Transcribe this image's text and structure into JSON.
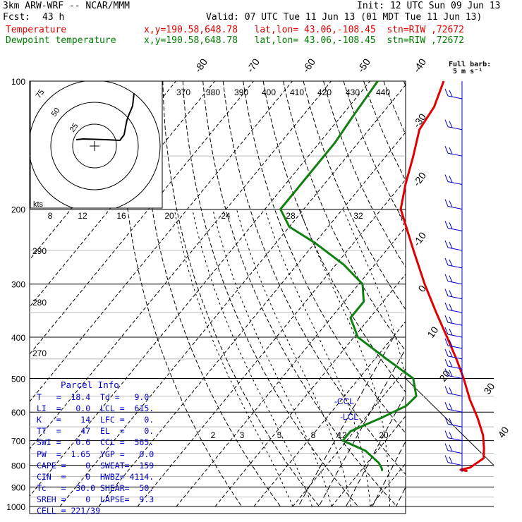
{
  "header": {
    "model": "3km ARW-WRF -- NCAR/MMM",
    "init": "Init: 12 UTC Sun 09 Jun 13",
    "fcst_label": "Fcst:",
    "fcst_value": "43 h",
    "valid": "Valid: 07 UTC Tue 11 Jun 13 (01 MDT Tue 11 Jun 13)",
    "temp_label": "Temperature",
    "temp_info": "x,y=190.58,648.78   lat,lon= 43.06,-108.45  stn=RIW ,72672",
    "dew_label": "Dewpoint temperature",
    "dew_info": "x,y=190.58,648.78   lat,lon= 43.06,-108.45  stn=RIW ,72672",
    "fullbarb": "Full barb:",
    "fullbarb_unit": "5 m s⁻¹"
  },
  "colors": {
    "temperature": "#e00000",
    "dewpoint": "#108010",
    "parcel_text": "#0000cc",
    "barbs": "#0000cc"
  },
  "chart_data": {
    "type": "skew-t",
    "pressure_levels": [
      100,
      200,
      300,
      400,
      500,
      600,
      700,
      800,
      900,
      1000
    ],
    "skewed_isotherm_labels": [
      "-80",
      "-70",
      "-60",
      "-50",
      "-40",
      "-30",
      "-20",
      "-10",
      "0",
      "10",
      "20",
      "30",
      "40"
    ],
    "theta_labels": [
      "370",
      "380",
      "390",
      "400",
      "410",
      "420",
      "430",
      "440"
    ],
    "mixing_ratio_labels_upper": [
      "8",
      "12",
      "16",
      "20",
      "24",
      "28",
      "32"
    ],
    "mixing_ratio_labels_lower": [
      "2",
      "3",
      "5",
      "8",
      "12",
      "20"
    ],
    "dry_adiabat_labels": [
      "290",
      "280",
      "270"
    ],
    "annotations": [
      "-CCL",
      "-LCL"
    ],
    "hodograph": {
      "rings": [
        "75",
        "50",
        "25"
      ],
      "unit": "kts"
    },
    "series": [
      {
        "name": "Temperature",
        "points": [
          [
            825,
            27.5
          ],
          [
            820,
            25.5
          ],
          [
            810,
            27.5
          ],
          [
            770,
            29.0
          ],
          [
            730,
            27.0
          ],
          [
            680,
            24.0
          ],
          [
            620,
            19.0
          ],
          [
            560,
            13.0
          ],
          [
            500,
            7.0
          ],
          [
            450,
            1.0
          ],
          [
            400,
            -6.0
          ],
          [
            350,
            -14.0
          ],
          [
            300,
            -23.0
          ],
          [
            250,
            -33.0
          ],
          [
            200,
            -45.0
          ],
          [
            175,
            -49.0
          ],
          [
            150,
            -53.0
          ],
          [
            130,
            -57.0
          ],
          [
            115,
            -58.0
          ],
          [
            100,
            -61.0
          ]
        ]
      },
      {
        "name": "Dewpoint temperature",
        "points": [
          [
            825,
            5.5
          ],
          [
            815,
            5.0
          ],
          [
            790,
            3.0
          ],
          [
            740,
            -3.0
          ],
          [
            700,
            -11.0
          ],
          [
            665,
            -11.0
          ],
          [
            620,
            -6.0
          ],
          [
            580,
            -2.0
          ],
          [
            550,
            -1.5
          ],
          [
            500,
            -6.0
          ],
          [
            450,
            -17.0
          ],
          [
            400,
            -29.0
          ],
          [
            360,
            -35.0
          ],
          [
            330,
            -35.0
          ],
          [
            300,
            -39.0
          ],
          [
            270,
            -48.0
          ],
          [
            240,
            -60.0
          ],
          [
            220,
            -70.0
          ],
          [
            200,
            -76.0
          ],
          [
            170,
            -76.0
          ],
          [
            140,
            -76.0
          ],
          [
            120,
            -77.0
          ],
          [
            100,
            -78.0
          ]
        ]
      }
    ]
  },
  "parcel": {
    "title": "Parcel Info",
    "rows": [
      "T   =  18.4  Td =   9.0",
      "LI  =   0.0  LCL =  615.",
      "K   =    14  LFC =    0.",
      "TT  =    47  EL  =    0.",
      "SWI =   0.6  CCL =  565.",
      "PW  =  1.65  YGP =   0.0",
      "CAPE =    0  SWEAT=  159",
      "CIN  =    0  HWBZ= 4114.",
      "Tc   =  30.0 SHEAR=  50.",
      "SREH =    0  LAPSE=  9.3",
      "CELL = 221/39"
    ]
  }
}
